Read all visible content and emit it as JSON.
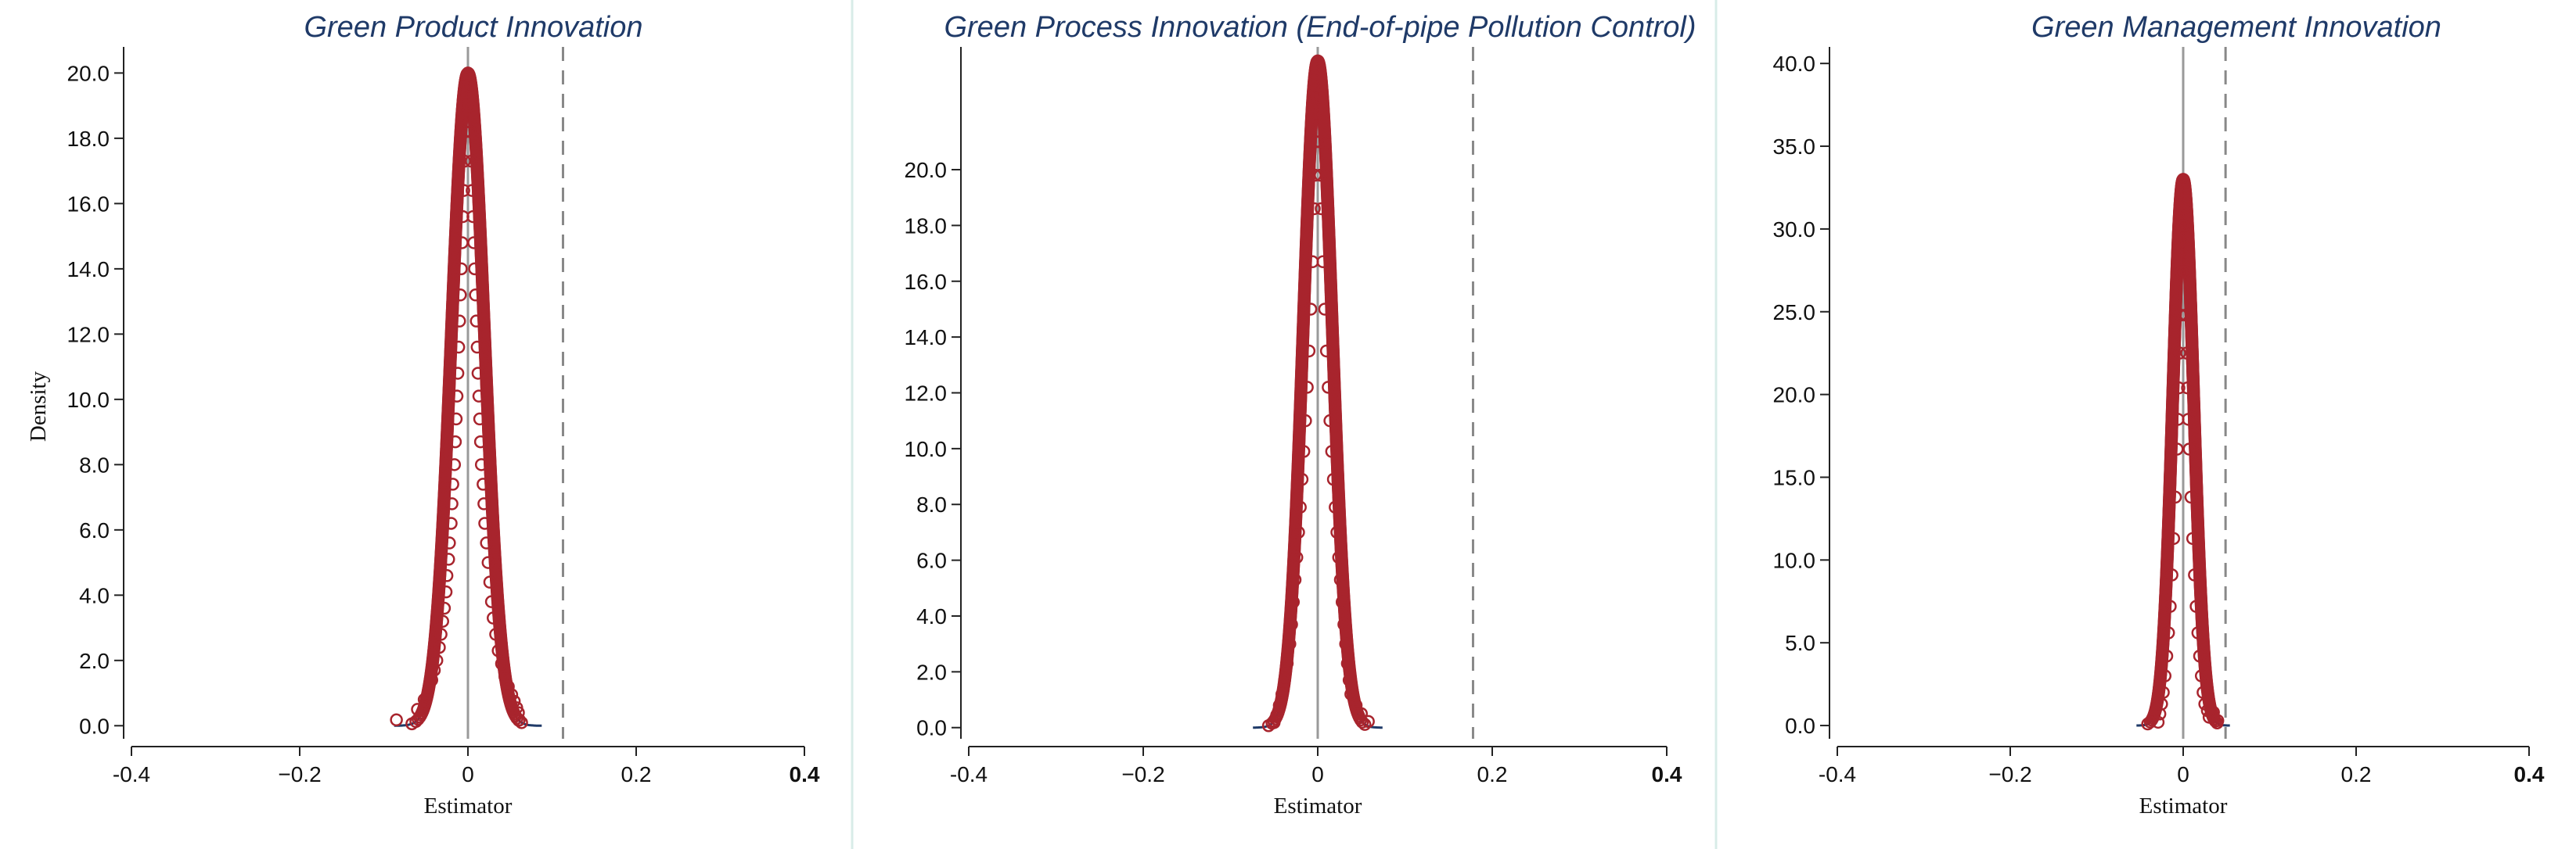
{
  "figure": {
    "colors": {
      "title": "#1f3a68",
      "marker": "#a8242d",
      "curve": "#1f3a68",
      "zero_line": "#9a9a9a",
      "dashed_line": "#888888",
      "axis": "#222222",
      "divider": "#d8ece8"
    }
  },
  "chart_data": [
    {
      "type": "scatter",
      "title": "Green Product Innovation",
      "xlabel": "Estimator",
      "ylabel": "Density",
      "xlim": [
        -0.4,
        0.4
      ],
      "ylim": [
        -0.4,
        20.8
      ],
      "x_ticks": [
        -0.4,
        -0.2,
        0,
        0.2,
        0.4
      ],
      "x_tick_labels": [
        "-0.4",
        "−0.2",
        "0",
        "0.2",
        "0.4"
      ],
      "y_ticks": [
        0,
        2,
        4,
        6,
        8,
        10,
        12,
        14,
        16,
        18,
        20
      ],
      "y_tick_labels": [
        "0.0",
        "2.0",
        "4.0",
        "6.0",
        "8.0",
        "10.0",
        "12.0",
        "14.0",
        "16.0",
        "18.0",
        "20.0"
      ],
      "reference_lines": {
        "zero_x": 0,
        "dashed_x": 0.113
      },
      "density": {
        "peak_x": 0.0,
        "peak_y": 20.0,
        "sd": 0.0195
      },
      "points": [
        [
          -0.085,
          0.18
        ],
        [
          -0.06,
          0.5
        ],
        [
          -0.052,
          0.8
        ],
        [
          -0.047,
          1.1
        ],
        [
          -0.043,
          1.4
        ],
        [
          -0.04,
          1.7
        ],
        [
          -0.037,
          2.0
        ],
        [
          -0.034,
          2.4
        ],
        [
          -0.032,
          2.8
        ],
        [
          -0.03,
          3.2
        ],
        [
          -0.028,
          3.6
        ],
        [
          -0.026,
          4.1
        ],
        [
          -0.025,
          4.6
        ],
        [
          -0.023,
          5.1
        ],
        [
          -0.022,
          5.6
        ],
        [
          -0.02,
          6.2
        ],
        [
          -0.019,
          6.8
        ],
        [
          -0.018,
          7.4
        ],
        [
          -0.016,
          8.0
        ],
        [
          -0.015,
          8.7
        ],
        [
          -0.014,
          9.4
        ],
        [
          -0.013,
          10.1
        ],
        [
          -0.012,
          10.8
        ],
        [
          -0.011,
          11.6
        ],
        [
          -0.01,
          12.4
        ],
        [
          -0.009,
          13.2
        ],
        [
          -0.008,
          14.0
        ],
        [
          -0.007,
          14.8
        ],
        [
          -0.006,
          15.6
        ],
        [
          -0.005,
          16.4
        ],
        [
          -0.004,
          17.3
        ],
        [
          -0.003,
          18.2
        ],
        [
          -0.002,
          19.0
        ],
        [
          -0.001,
          19.6
        ],
        [
          0.0,
          20.0
        ],
        [
          0.001,
          19.6
        ],
        [
          0.002,
          19.0
        ],
        [
          0.003,
          18.2
        ],
        [
          0.004,
          17.3
        ],
        [
          0.005,
          16.4
        ],
        [
          0.006,
          15.6
        ],
        [
          0.007,
          14.8
        ],
        [
          0.008,
          14.0
        ],
        [
          0.009,
          13.2
        ],
        [
          0.01,
          12.4
        ],
        [
          0.011,
          11.6
        ],
        [
          0.012,
          10.8
        ],
        [
          0.013,
          10.1
        ],
        [
          0.014,
          9.4
        ],
        [
          0.015,
          8.7
        ],
        [
          0.016,
          8.0
        ],
        [
          0.018,
          7.4
        ],
        [
          0.019,
          6.8
        ],
        [
          0.02,
          6.2
        ],
        [
          0.022,
          5.6
        ],
        [
          0.024,
          5.0
        ],
        [
          0.026,
          4.4
        ],
        [
          0.028,
          3.8
        ],
        [
          0.03,
          3.3
        ],
        [
          0.033,
          2.8
        ],
        [
          0.036,
          2.3
        ],
        [
          0.04,
          1.9
        ],
        [
          0.044,
          1.5
        ],
        [
          0.048,
          1.2
        ],
        [
          0.052,
          0.95
        ],
        [
          0.055,
          0.75
        ],
        [
          0.058,
          0.55
        ],
        [
          0.06,
          0.4
        ],
        [
          0.061,
          0.18
        ]
      ]
    },
    {
      "type": "scatter",
      "title": "Green Process Innovation (End-of-pipe Pollution Control)",
      "xlabel": "Estimator",
      "ylabel": "",
      "xlim": [
        -0.4,
        0.4
      ],
      "ylim": [
        -0.4,
        24.4
      ],
      "x_ticks": [
        -0.4,
        -0.2,
        0,
        0.2,
        0.4
      ],
      "x_tick_labels": [
        "-0.4",
        "−0.2",
        "0",
        "0.2",
        "0.4"
      ],
      "y_ticks": [
        0,
        2,
        4,
        6,
        8,
        10,
        12,
        14,
        16,
        18,
        20
      ],
      "y_tick_labels": [
        "0.0",
        "2.0",
        "4.0",
        "6.0",
        "8.0",
        "10.0",
        "12.0",
        "14.0",
        "16.0",
        "18.0",
        "20.0"
      ],
      "reference_lines": {
        "zero_x": 0,
        "dashed_x": 0.178
      },
      "density": {
        "peak_x": 0.0,
        "peak_y": 23.9,
        "sd": 0.0165
      },
      "points": [
        [
          -0.05,
          0.18
        ],
        [
          -0.047,
          0.45
        ],
        [
          -0.044,
          0.8
        ],
        [
          -0.041,
          1.2
        ],
        [
          -0.038,
          1.7
        ],
        [
          -0.035,
          2.3
        ],
        [
          -0.032,
          3.0
        ],
        [
          -0.03,
          3.7
        ],
        [
          -0.028,
          4.5
        ],
        [
          -0.026,
          5.3
        ],
        [
          -0.024,
          6.1
        ],
        [
          -0.022,
          7.0
        ],
        [
          -0.02,
          7.9
        ],
        [
          -0.018,
          8.9
        ],
        [
          -0.016,
          9.9
        ],
        [
          -0.014,
          11.0
        ],
        [
          -0.012,
          12.2
        ],
        [
          -0.01,
          13.5
        ],
        [
          -0.008,
          15.0
        ],
        [
          -0.006,
          16.7
        ],
        [
          -0.004,
          18.6
        ],
        [
          -0.003,
          19.8
        ],
        [
          -0.002,
          21.0
        ],
        [
          -0.001,
          22.6
        ],
        [
          0.0,
          23.9
        ],
        [
          0.001,
          22.6
        ],
        [
          0.002,
          21.0
        ],
        [
          0.003,
          19.8
        ],
        [
          0.004,
          18.6
        ],
        [
          0.006,
          16.7
        ],
        [
          0.008,
          15.0
        ],
        [
          0.01,
          13.5
        ],
        [
          0.012,
          12.2
        ],
        [
          0.014,
          11.0
        ],
        [
          0.016,
          9.9
        ],
        [
          0.018,
          8.9
        ],
        [
          0.02,
          7.9
        ],
        [
          0.022,
          7.0
        ],
        [
          0.024,
          6.1
        ],
        [
          0.026,
          5.3
        ],
        [
          0.028,
          4.5
        ],
        [
          0.03,
          3.7
        ],
        [
          0.032,
          3.0
        ],
        [
          0.034,
          2.3
        ],
        [
          0.036,
          1.7
        ],
        [
          0.038,
          1.2
        ],
        [
          0.044,
          0.8
        ],
        [
          0.05,
          0.5
        ],
        [
          0.058,
          0.22
        ]
      ]
    },
    {
      "type": "scatter",
      "title": "Green Management Innovation",
      "xlabel": "Estimator",
      "ylabel": "",
      "xlim": [
        -0.4,
        0.4
      ],
      "ylim": [
        -0.8,
        41.0
      ],
      "x_ticks": [
        -0.4,
        -0.2,
        0,
        0.2,
        0.4
      ],
      "x_tick_labels": [
        "-0.4",
        "−0.2",
        "0",
        "0.2",
        "0.4"
      ],
      "y_ticks": [
        0,
        5,
        10,
        15,
        20,
        25,
        30,
        35,
        40
      ],
      "y_tick_labels": [
        "0.0",
        "5.0",
        "10.0",
        "15.0",
        "20.0",
        "25.0",
        "30.0",
        "35.0",
        "40.0"
      ],
      "reference_lines": {
        "zero_x": 0,
        "dashed_x": 0.049
      },
      "density": {
        "peak_x": 0.0,
        "peak_y": 33.0,
        "sd": 0.012
      },
      "points": [
        [
          -0.029,
          0.2
        ],
        [
          -0.027,
          0.7
        ],
        [
          -0.025,
          1.3
        ],
        [
          -0.023,
          2.0
        ],
        [
          -0.021,
          3.0
        ],
        [
          -0.019,
          4.2
        ],
        [
          -0.017,
          5.6
        ],
        [
          -0.015,
          7.2
        ],
        [
          -0.013,
          9.1
        ],
        [
          -0.011,
          11.3
        ],
        [
          -0.009,
          13.8
        ],
        [
          -0.007,
          16.7
        ],
        [
          -0.006,
          18.5
        ],
        [
          -0.005,
          20.4
        ],
        [
          -0.004,
          22.5
        ],
        [
          -0.003,
          24.8
        ],
        [
          -0.002,
          27.4
        ],
        [
          -0.001,
          30.2
        ],
        [
          0.0,
          33.0
        ],
        [
          0.001,
          30.2
        ],
        [
          0.002,
          27.4
        ],
        [
          0.003,
          24.8
        ],
        [
          0.004,
          22.5
        ],
        [
          0.005,
          20.4
        ],
        [
          0.006,
          18.5
        ],
        [
          0.007,
          16.7
        ],
        [
          0.009,
          13.8
        ],
        [
          0.011,
          11.3
        ],
        [
          0.013,
          9.1
        ],
        [
          0.015,
          7.2
        ],
        [
          0.017,
          5.6
        ],
        [
          0.019,
          4.2
        ],
        [
          0.021,
          3.0
        ],
        [
          0.023,
          2.0
        ],
        [
          0.025,
          1.3
        ],
        [
          0.028,
          0.9
        ],
        [
          0.03,
          0.5
        ],
        [
          0.035,
          0.8
        ],
        [
          0.04,
          0.3
        ]
      ]
    }
  ]
}
